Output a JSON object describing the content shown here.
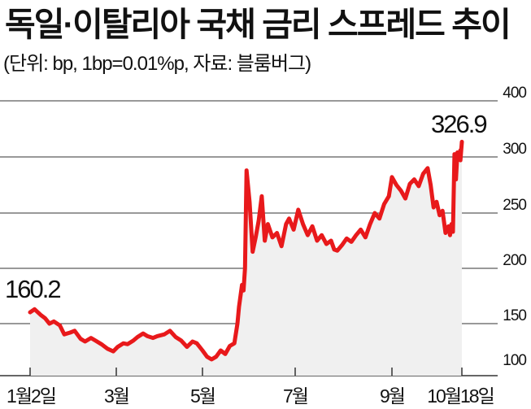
{
  "chart_data": {
    "type": "line",
    "title": "독일·이탈리아 국채 금리 스프레드 추이",
    "subtitle": "(단위: bp, 1bp=0.01%p, 자료: 블룸버그)",
    "xlabel": "",
    "ylabel": "",
    "ylim": [
      100,
      400
    ],
    "y_ticks": [
      "100",
      "150",
      "200",
      "250",
      "300",
      "400"
    ],
    "x_ticks": [
      "1월2일",
      "3월",
      "5월",
      "7월",
      "9월",
      "10월18일"
    ],
    "grid": true,
    "annotations": [
      {
        "label": "160.2",
        "x": "1월2일"
      },
      {
        "label": "326.9",
        "x": "10월18일"
      }
    ],
    "series": [
      {
        "name": "",
        "values": [
          {
            "x": "2018-01-02",
            "y": 160.2
          },
          {
            "x": "2018-01-05",
            "y": 163
          },
          {
            "x": "2018-01-09",
            "y": 158
          },
          {
            "x": "2018-01-12",
            "y": 155
          },
          {
            "x": "2018-01-15",
            "y": 150
          },
          {
            "x": "2018-01-18",
            "y": 152
          },
          {
            "x": "2018-01-22",
            "y": 148
          },
          {
            "x": "2018-01-25",
            "y": 138
          },
          {
            "x": "2018-01-29",
            "y": 140
          },
          {
            "x": "2018-02-01",
            "y": 142
          },
          {
            "x": "2018-02-05",
            "y": 133
          },
          {
            "x": "2018-02-08",
            "y": 130
          },
          {
            "x": "2018-02-12",
            "y": 134
          },
          {
            "x": "2018-02-15",
            "y": 131
          },
          {
            "x": "2018-02-19",
            "y": 127
          },
          {
            "x": "2018-02-23",
            "y": 122
          },
          {
            "x": "2018-02-27",
            "y": 119
          },
          {
            "x": "2018-03-02",
            "y": 124
          },
          {
            "x": "2018-03-06",
            "y": 128
          },
          {
            "x": "2018-03-09",
            "y": 127
          },
          {
            "x": "2018-03-13",
            "y": 131
          },
          {
            "x": "2018-03-16",
            "y": 135
          },
          {
            "x": "2018-03-20",
            "y": 139
          },
          {
            "x": "2018-03-23",
            "y": 136
          },
          {
            "x": "2018-03-27",
            "y": 134
          },
          {
            "x": "2018-03-30",
            "y": 136
          },
          {
            "x": "2018-04-04",
            "y": 138
          },
          {
            "x": "2018-04-08",
            "y": 142
          },
          {
            "x": "2018-04-12",
            "y": 135
          },
          {
            "x": "2018-04-16",
            "y": 131
          },
          {
            "x": "2018-04-20",
            "y": 124
          },
          {
            "x": "2018-04-24",
            "y": 130
          },
          {
            "x": "2018-04-27",
            "y": 128
          },
          {
            "x": "2018-05-01",
            "y": 120
          },
          {
            "x": "2018-05-04",
            "y": 113
          },
          {
            "x": "2018-05-07",
            "y": 110
          },
          {
            "x": "2018-05-10",
            "y": 113
          },
          {
            "x": "2018-05-13",
            "y": 120
          },
          {
            "x": "2018-05-16",
            "y": 116
          },
          {
            "x": "2018-05-19",
            "y": 125
          },
          {
            "x": "2018-05-22",
            "y": 128
          },
          {
            "x": "2018-05-24",
            "y": 150
          },
          {
            "x": "2018-05-25",
            "y": 165
          },
          {
            "x": "2018-05-27",
            "y": 185
          },
          {
            "x": "2018-05-28",
            "y": 180
          },
          {
            "x": "2018-05-29",
            "y": 200
          },
          {
            "x": "2018-05-30",
            "y": 288
          },
          {
            "x": "2018-06-01",
            "y": 260
          },
          {
            "x": "2018-06-03",
            "y": 215
          },
          {
            "x": "2018-06-05",
            "y": 228
          },
          {
            "x": "2018-06-07",
            "y": 243
          },
          {
            "x": "2018-06-09",
            "y": 265
          },
          {
            "x": "2018-06-11",
            "y": 225
          },
          {
            "x": "2018-06-13",
            "y": 240
          },
          {
            "x": "2018-06-16",
            "y": 228
          },
          {
            "x": "2018-06-19",
            "y": 232
          },
          {
            "x": "2018-06-22",
            "y": 220
          },
          {
            "x": "2018-06-25",
            "y": 240
          },
          {
            "x": "2018-06-27",
            "y": 245
          },
          {
            "x": "2018-06-30",
            "y": 235
          },
          {
            "x": "2018-07-03",
            "y": 253
          },
          {
            "x": "2018-07-06",
            "y": 240
          },
          {
            "x": "2018-07-09",
            "y": 230
          },
          {
            "x": "2018-07-12",
            "y": 238
          },
          {
            "x": "2018-07-15",
            "y": 225
          },
          {
            "x": "2018-07-18",
            "y": 230
          },
          {
            "x": "2018-07-21",
            "y": 222
          },
          {
            "x": "2018-07-24",
            "y": 225
          },
          {
            "x": "2018-07-26",
            "y": 217
          },
          {
            "x": "2018-07-28",
            "y": 216
          },
          {
            "x": "2018-07-31",
            "y": 221
          },
          {
            "x": "2018-08-03",
            "y": 227
          },
          {
            "x": "2018-08-06",
            "y": 224
          },
          {
            "x": "2018-08-09",
            "y": 230
          },
          {
            "x": "2018-08-12",
            "y": 235
          },
          {
            "x": "2018-08-15",
            "y": 228
          },
          {
            "x": "2018-08-18",
            "y": 240
          },
          {
            "x": "2018-08-21",
            "y": 250
          },
          {
            "x": "2018-08-24",
            "y": 245
          },
          {
            "x": "2018-08-27",
            "y": 258
          },
          {
            "x": "2018-08-30",
            "y": 265
          },
          {
            "x": "2018-09-01",
            "y": 282
          },
          {
            "x": "2018-09-04",
            "y": 275
          },
          {
            "x": "2018-09-07",
            "y": 270
          },
          {
            "x": "2018-09-10",
            "y": 263
          },
          {
            "x": "2018-09-13",
            "y": 276
          },
          {
            "x": "2018-09-16",
            "y": 280
          },
          {
            "x": "2018-09-19",
            "y": 274
          },
          {
            "x": "2018-09-22",
            "y": 285
          },
          {
            "x": "2018-09-25",
            "y": 290
          },
          {
            "x": "2018-09-27",
            "y": 275
          },
          {
            "x": "2018-09-29",
            "y": 255
          },
          {
            "x": "2018-10-01",
            "y": 260
          },
          {
            "x": "2018-10-03",
            "y": 248
          },
          {
            "x": "2018-10-05",
            "y": 252
          },
          {
            "x": "2018-10-07",
            "y": 232
          },
          {
            "x": "2018-10-09",
            "y": 238
          },
          {
            "x": "2018-10-10",
            "y": 230
          },
          {
            "x": "2018-10-11",
            "y": 240
          },
          {
            "x": "2018-10-12",
            "y": 233
          },
          {
            "x": "2018-10-13",
            "y": 305
          },
          {
            "x": "2018-10-14",
            "y": 280
          },
          {
            "x": "2018-10-15",
            "y": 308
          },
          {
            "x": "2018-10-16",
            "y": 300
          },
          {
            "x": "2018-10-17",
            "y": 312
          },
          {
            "x": "2018-10-17",
            "y": 297
          },
          {
            "x": "2018-10-18",
            "y": 326.9
          }
        ]
      }
    ],
    "colors": {
      "line": "#e8191b",
      "area": "#f0f0f0",
      "grid": "#333333",
      "text": "#111111"
    }
  }
}
